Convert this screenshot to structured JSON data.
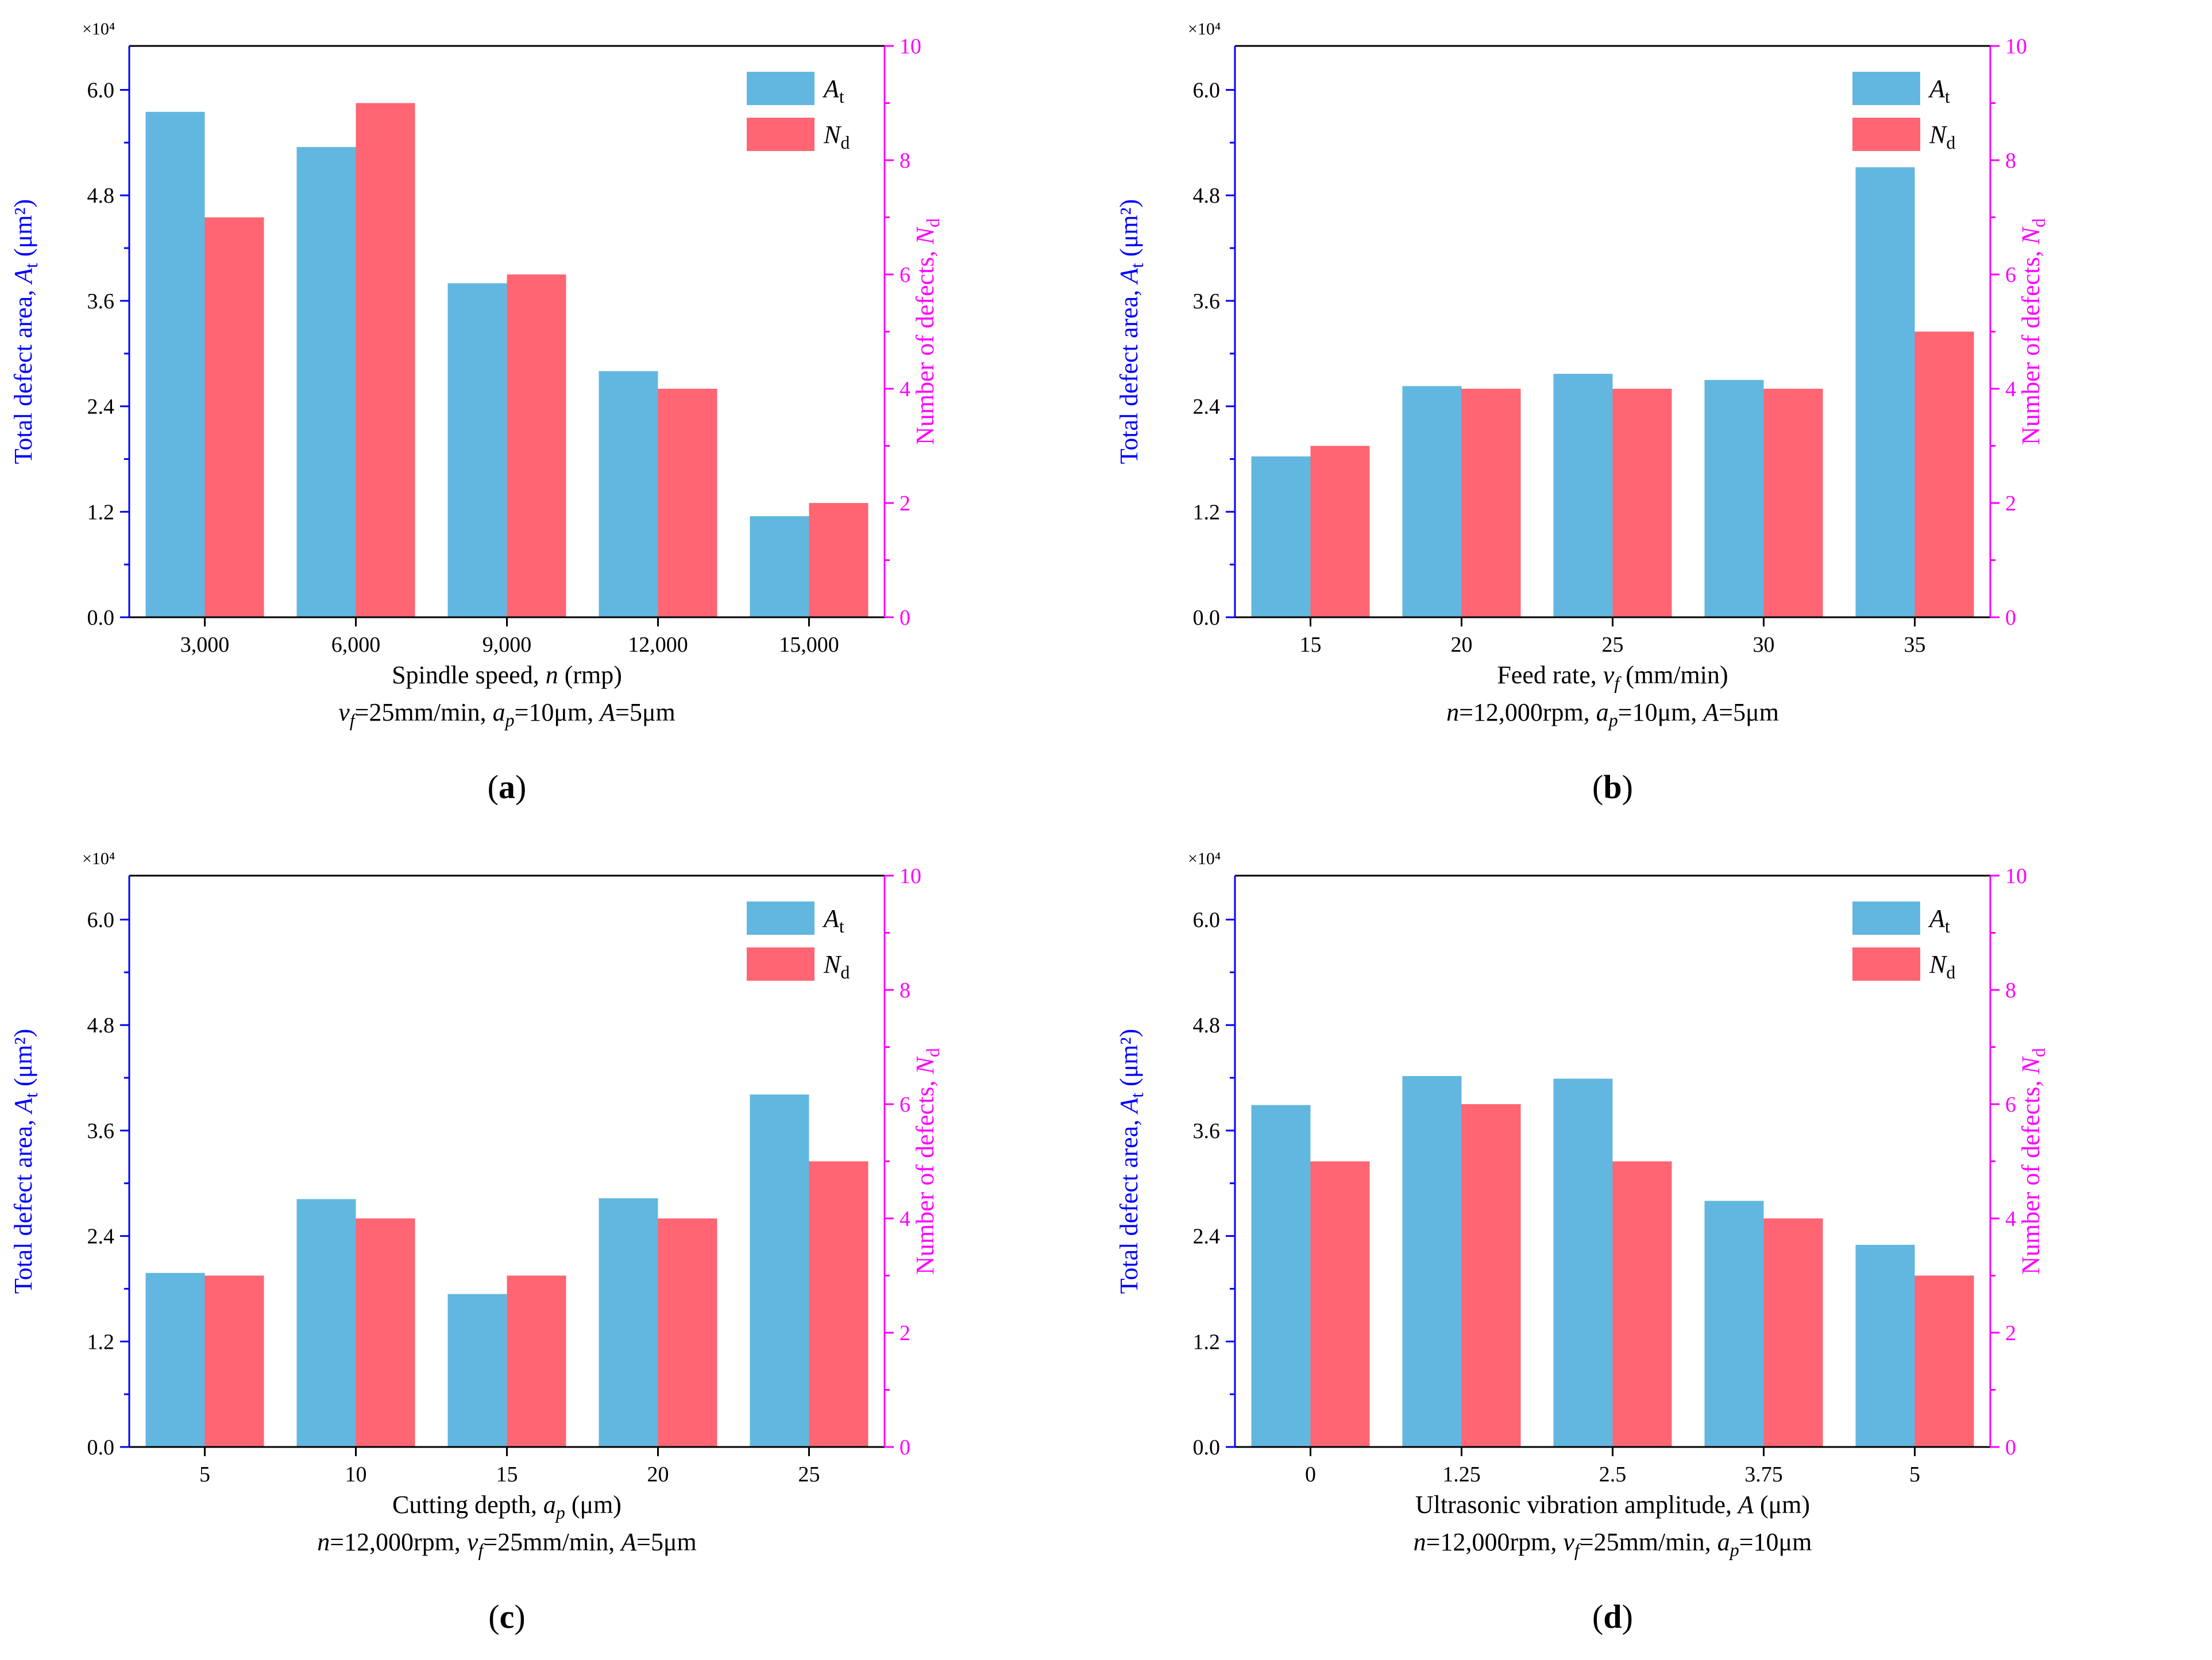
{
  "colors": {
    "At": "#62B7E0",
    "Nd": "#FF6572",
    "left_axis": "#0000FF",
    "right_axis": "#FF00FF",
    "text": "#000000"
  },
  "legend": {
    "at_main": "A",
    "at_sub": "t",
    "nd_main": "N",
    "nd_sub": "d"
  },
  "chart_data": [
    {
      "type": "bar",
      "panel_label": "(a)",
      "categories": [
        "3,000",
        "6,000",
        "9,000",
        "12,000",
        "15,000"
      ],
      "series": [
        {
          "name": "At",
          "axis": "left",
          "values": [
            57500,
            53500,
            38000,
            28000,
            11500
          ]
        },
        {
          "name": "Nd",
          "axis": "right",
          "values": [
            7,
            9,
            6,
            4,
            2
          ]
        }
      ],
      "y_left": {
        "lim": [
          0,
          65000
        ],
        "ticks": [
          "0.0",
          "1.2",
          "2.4",
          "3.6",
          "4.8",
          "6.0"
        ],
        "multiplier": "×10⁴",
        "label_pre": "Total defect area, ",
        "label_var": "A",
        "label_sub": "t",
        "label_post": " (μm²)"
      },
      "y_right": {
        "lim": [
          0,
          10
        ],
        "ticks": [
          "0",
          "2",
          "4",
          "6",
          "8",
          "10"
        ],
        "label_pre": "Number of defects, ",
        "label_var": "N",
        "label_sub": "d"
      },
      "xlabel": {
        "pre": "Spindle speed, ",
        "var": "n",
        "post": "  (rmp)"
      },
      "condition": [
        {
          "t": "v",
          "i": true
        },
        {
          "t": "f",
          "i": true,
          "sub": true
        },
        {
          "t": "=25mm/min, "
        },
        {
          "t": "a",
          "i": true
        },
        {
          "t": "p",
          "i": true,
          "sub": true
        },
        {
          "t": "=10μm, "
        },
        {
          "t": "A",
          "i": true
        },
        {
          "t": "=5μm"
        }
      ],
      "legend_position": "top-right"
    },
    {
      "type": "bar",
      "panel_label": "(b)",
      "categories": [
        "15",
        "20",
        "25",
        "30",
        "35"
      ],
      "series": [
        {
          "name": "At",
          "axis": "left",
          "values": [
            18300,
            26300,
            27700,
            27000,
            51200
          ]
        },
        {
          "name": "Nd",
          "axis": "right",
          "values": [
            3,
            4,
            4,
            4,
            5
          ]
        }
      ],
      "y_left": {
        "lim": [
          0,
          65000
        ],
        "ticks": [
          "0.0",
          "1.2",
          "2.4",
          "3.6",
          "4.8",
          "6.0"
        ],
        "multiplier": "×10⁴",
        "label_pre": "Total defect area, ",
        "label_var": "A",
        "label_sub": "t",
        "label_post": " (μm²)"
      },
      "y_right": {
        "lim": [
          0,
          10
        ],
        "ticks": [
          "0",
          "2",
          "4",
          "6",
          "8",
          "10"
        ],
        "label_pre": "Number of defects, ",
        "label_var": "N",
        "label_sub": "d"
      },
      "xlabel": {
        "pre": "Feed rate, ",
        "var": "v",
        "vsub": "f",
        "post": " (mm/min)"
      },
      "condition": [
        {
          "t": "n",
          "i": true
        },
        {
          "t": "=12,000rpm, "
        },
        {
          "t": "a",
          "i": true
        },
        {
          "t": "p",
          "i": true,
          "sub": true
        },
        {
          "t": "=10μm, "
        },
        {
          "t": "A",
          "i": true
        },
        {
          "t": "=5μm"
        }
      ],
      "legend_position": "top-right"
    },
    {
      "type": "bar",
      "panel_label": "(c)",
      "categories": [
        "5",
        "10",
        "15",
        "20",
        "25"
      ],
      "series": [
        {
          "name": "At",
          "axis": "left",
          "values": [
            19800,
            28200,
            17400,
            28300,
            40100
          ]
        },
        {
          "name": "Nd",
          "axis": "right",
          "values": [
            3,
            4,
            3,
            4,
            5
          ]
        }
      ],
      "y_left": {
        "lim": [
          0,
          65000
        ],
        "ticks": [
          "0.0",
          "1.2",
          "2.4",
          "3.6",
          "4.8",
          "6.0"
        ],
        "multiplier": "×10⁴",
        "label_pre": "Total defect area, ",
        "label_var": "A",
        "label_sub": "t",
        "label_post": " (μm²)"
      },
      "y_right": {
        "lim": [
          0,
          10
        ],
        "ticks": [
          "0",
          "2",
          "4",
          "6",
          "8",
          "10"
        ],
        "label_pre": "Number of defects, ",
        "label_var": "N",
        "label_sub": "d"
      },
      "xlabel": {
        "pre": "Cutting depth, ",
        "var": "a",
        "vsub": "p",
        "post": " (μm)"
      },
      "condition": [
        {
          "t": "n",
          "i": true
        },
        {
          "t": "=12,000rpm, "
        },
        {
          "t": "v",
          "i": true
        },
        {
          "t": "f",
          "i": true,
          "sub": true
        },
        {
          "t": "=25mm/min, "
        },
        {
          "t": "A",
          "i": true
        },
        {
          "t": "=5μm"
        }
      ],
      "legend_position": "top-right"
    },
    {
      "type": "bar",
      "panel_label": "(d)",
      "categories": [
        "0",
        "1.25",
        "2.5",
        "3.75",
        "5"
      ],
      "series": [
        {
          "name": "At",
          "axis": "left",
          "values": [
            38900,
            42200,
            41900,
            28000,
            23000
          ]
        },
        {
          "name": "Nd",
          "axis": "right",
          "values": [
            5,
            6,
            5,
            4,
            3
          ]
        }
      ],
      "y_left": {
        "lim": [
          0,
          65000
        ],
        "ticks": [
          "0.0",
          "1.2",
          "2.4",
          "3.6",
          "4.8",
          "6.0"
        ],
        "multiplier": "×10⁴",
        "label_pre": "Total defect area, ",
        "label_var": "A",
        "label_sub": "t",
        "label_post": " (μm²)"
      },
      "y_right": {
        "lim": [
          0,
          10
        ],
        "ticks": [
          "0",
          "2",
          "4",
          "6",
          "8",
          "10"
        ],
        "label_pre": "Number of defects, ",
        "label_var": "N",
        "label_sub": "d"
      },
      "xlabel": {
        "pre": "Ultrasonic vibration amplitude, ",
        "var": "A",
        "post": " (μm)"
      },
      "condition": [
        {
          "t": "n",
          "i": true
        },
        {
          "t": "=12,000rpm, "
        },
        {
          "t": "v",
          "i": true
        },
        {
          "t": "f",
          "i": true,
          "sub": true
        },
        {
          "t": "=25mm/min, "
        },
        {
          "t": "a",
          "i": true
        },
        {
          "t": "p",
          "i": true,
          "sub": true
        },
        {
          "t": "=10μm"
        }
      ],
      "legend_position": "top-right"
    }
  ]
}
